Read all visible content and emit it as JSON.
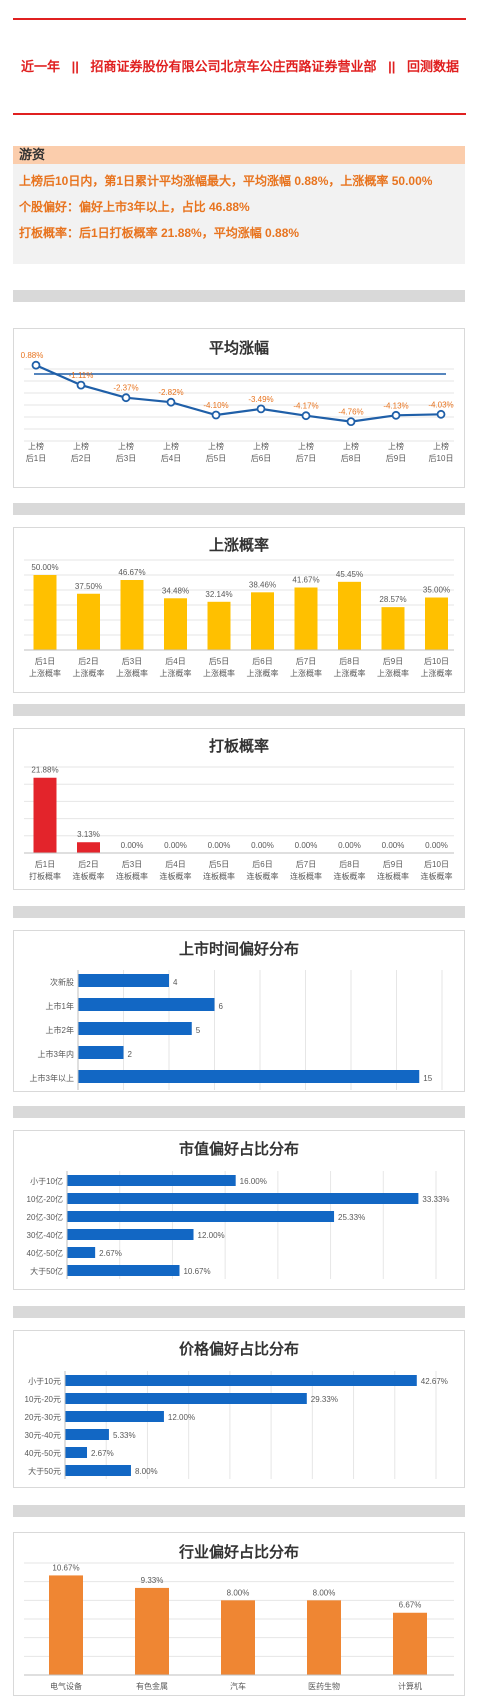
{
  "header": {
    "part1": "近一年",
    "sep": "||",
    "part2": "招商证券股份有限公司北京车公庄西路证券营业部",
    "part3": "回测数据"
  },
  "summary": {
    "heading": "游资",
    "lines": [
      "上榜后10日内，第1日累计平均涨幅最大，平均涨幅 0.88%，上涨概率 50.00%",
      "个股偏好：偏好上市3年以上，占比 46.88%",
      "打板概率：后1日打板概率 21.88%，平均涨幅 0.88%"
    ]
  },
  "colors": {
    "accent_red": "#e02020",
    "line_blue": "#1f5fa8",
    "bar_yellow": "#ffc000",
    "bar_red": "#e3242b",
    "bar_blue": "#1267c4",
    "bar_orange": "#ef8633",
    "label_orange": "#e8741f"
  },
  "chart_data": [
    {
      "type": "line",
      "title": "平均涨幅",
      "categories": [
        [
          "上榜",
          "后1日"
        ],
        [
          "上榜",
          "后2日"
        ],
        [
          "上榜",
          "后3日"
        ],
        [
          "上榜",
          "后4日"
        ],
        [
          "上榜",
          "后5日"
        ],
        [
          "上榜",
          "后6日"
        ],
        [
          "上榜",
          "后7日"
        ],
        [
          "上榜",
          "后8日"
        ],
        [
          "上榜",
          "后9日"
        ],
        [
          "上榜",
          "后10日"
        ]
      ],
      "values": [
        0.88,
        -1.11,
        -2.37,
        -2.82,
        -4.1,
        -3.49,
        -4.17,
        -4.76,
        -4.13,
        -4.03
      ],
      "labels": [
        "0.88%",
        "-1.11%",
        "-2.37%",
        "-2.82%",
        "-4.10%",
        "-3.49%",
        "-4.17%",
        "-4.76%",
        "-4.13%",
        "-4.03%"
      ],
      "reference": 0,
      "ylim": [
        -6,
        1.5
      ]
    },
    {
      "type": "bar",
      "title": "上涨概率",
      "categories": [
        [
          "后1日",
          "上涨概率"
        ],
        [
          "后2日",
          "上涨概率"
        ],
        [
          "后3日",
          "上涨概率"
        ],
        [
          "后4日",
          "上涨概率"
        ],
        [
          "后5日",
          "上涨概率"
        ],
        [
          "后6日",
          "上涨概率"
        ],
        [
          "后7日",
          "上涨概率"
        ],
        [
          "后8日",
          "上涨概率"
        ],
        [
          "后9日",
          "上涨概率"
        ],
        [
          "后10日",
          "上涨概率"
        ]
      ],
      "values": [
        50.0,
        37.5,
        46.67,
        34.48,
        32.14,
        38.46,
        41.67,
        45.45,
        28.57,
        35.0
      ],
      "labels": [
        "50.00%",
        "37.50%",
        "46.67%",
        "34.48%",
        "32.14%",
        "38.46%",
        "41.67%",
        "45.45%",
        "28.57%",
        "35.00%"
      ],
      "ylim": [
        0,
        60
      ]
    },
    {
      "type": "bar",
      "title": "打板概率",
      "categories": [
        [
          "后1日",
          "打板概率"
        ],
        [
          "后2日",
          "连板概率"
        ],
        [
          "后3日",
          "连板概率"
        ],
        [
          "后4日",
          "连板概率"
        ],
        [
          "后5日",
          "连板概率"
        ],
        [
          "后6日",
          "连板概率"
        ],
        [
          "后7日",
          "连板概率"
        ],
        [
          "后8日",
          "连板概率"
        ],
        [
          "后9日",
          "连板概率"
        ],
        [
          "后10日",
          "连板概率"
        ]
      ],
      "values": [
        21.88,
        3.13,
        0,
        0,
        0,
        0,
        0,
        0,
        0,
        0
      ],
      "labels": [
        "21.88%",
        "3.13%",
        "0.00%",
        "0.00%",
        "0.00%",
        "0.00%",
        "0.00%",
        "0.00%",
        "0.00%",
        "0.00%"
      ],
      "ylim": [
        0,
        25
      ]
    },
    {
      "type": "bar",
      "orientation": "horizontal",
      "title": "上市时间偏好分布",
      "categories": [
        "次新股",
        "上市1年",
        "上市2年",
        "上市3年内",
        "上市3年以上"
      ],
      "values": [
        4,
        6,
        5,
        2,
        15
      ],
      "labels": [
        "4",
        "6",
        "5",
        "2",
        "15"
      ],
      "xlim": [
        0,
        16
      ]
    },
    {
      "type": "bar",
      "orientation": "horizontal",
      "title": "市值偏好占比分布",
      "categories": [
        "小于10亿",
        "10亿-20亿",
        "20亿-30亿",
        "30亿-40亿",
        "40亿-50亿",
        "大于50亿"
      ],
      "values": [
        16.0,
        33.33,
        25.33,
        12.0,
        2.67,
        10.67
      ],
      "labels": [
        "16.00%",
        "33.33%",
        "25.33%",
        "12.00%",
        "2.67%",
        "10.67%"
      ],
      "xlim": [
        0,
        35
      ]
    },
    {
      "type": "bar",
      "orientation": "horizontal",
      "title": "价格偏好占比分布",
      "categories": [
        "小于10元",
        "10元-20元",
        "20元-30元",
        "30元-40元",
        "40元-50元",
        "大于50元"
      ],
      "values": [
        42.67,
        29.33,
        12.0,
        5.33,
        2.67,
        8.0
      ],
      "labels": [
        "42.67%",
        "29.33%",
        "12.00%",
        "5.33%",
        "2.67%",
        "8.00%"
      ],
      "xlim": [
        0,
        45
      ]
    },
    {
      "type": "bar",
      "title": "行业偏好占比分布",
      "categories": [
        [
          "电气设备"
        ],
        [
          "有色金属"
        ],
        [
          "汽车"
        ],
        [
          "医药生物"
        ],
        [
          "计算机"
        ]
      ],
      "values": [
        10.67,
        9.33,
        8.0,
        8.0,
        6.67
      ],
      "labels": [
        "10.67%",
        "9.33%",
        "8.00%",
        "8.00%",
        "6.67%"
      ],
      "ylim": [
        0,
        12
      ]
    }
  ]
}
